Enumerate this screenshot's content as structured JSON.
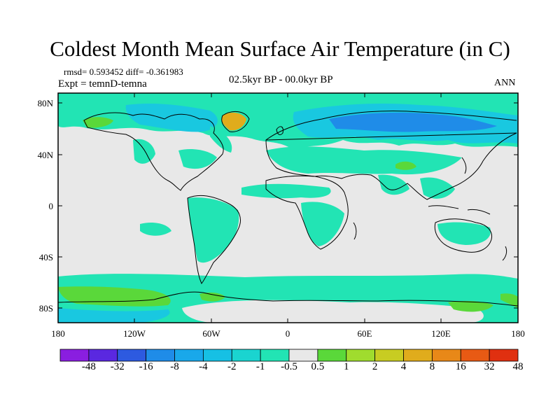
{
  "title": "Coldest Month Mean Surface Air Temperature (in C)",
  "stats": {
    "rmsd_text": "rmsd= 0.593452 diff= -0.361983",
    "expt_text": "Expt = temnD-temna",
    "period_text": "02.5kyr BP - 00.0kyr BP",
    "season_text": "ANN"
  },
  "axes": {
    "y_ticks": [
      "80N",
      "40N",
      "0",
      "40S",
      "80S"
    ],
    "x_ticks": [
      "180",
      "120W",
      "60W",
      "0",
      "60E",
      "120E",
      "180"
    ]
  },
  "colorbar": {
    "labels": [
      "-48",
      "-32",
      "-16",
      "-8",
      "-4",
      "-2",
      "-1",
      "-0.5",
      "0.5",
      "1",
      "2",
      "4",
      "8",
      "16",
      "32",
      "48"
    ],
    "colors": [
      "#8a1ee0",
      "#5a28e0",
      "#2d5ae0",
      "#1f8ce8",
      "#19a8ea",
      "#16c0e4",
      "#1ad4d0",
      "#22e4b4",
      "#e8e8e8",
      "#5ad83a",
      "#a0dc2e",
      "#c8cc22",
      "#e0ac1c",
      "#e88818",
      "#e85a14",
      "#e03010"
    ]
  },
  "colors": {
    "background": "#e8e8e8",
    "cyan": "#19c8e0",
    "teal": "#22e4b4",
    "blue": "#1f8ce8",
    "green": "#5ad83a",
    "yellow": "#a0dc2e",
    "orange": "#e0ac1c"
  }
}
